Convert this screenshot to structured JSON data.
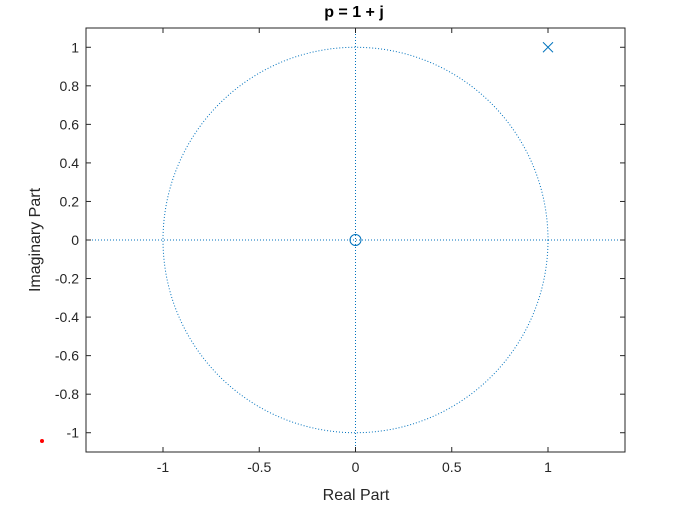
{
  "chart_data": {
    "type": "scatter",
    "title": "p = 1 + j",
    "xlabel": "Real Part",
    "ylabel": "Imaginary Part",
    "xlim": [
      -1.4,
      1.4
    ],
    "ylim": [
      -1.1,
      1.1
    ],
    "x_ticks": [
      -1,
      -0.5,
      0,
      0.5,
      1
    ],
    "x_tick_labels": [
      "-1",
      "-0.5",
      "0",
      "0.5",
      "1"
    ],
    "y_ticks": [
      1,
      0.8,
      0.6,
      0.4,
      0.2,
      0,
      -0.2,
      -0.4,
      -0.6,
      -0.8,
      -1
    ],
    "y_tick_labels": [
      "1",
      "0.8",
      "0.6",
      "0.4",
      "0.2",
      "0",
      "-0.2",
      "-0.4",
      "-0.6",
      "-0.8",
      "-1"
    ],
    "grid": false,
    "unit_circle": {
      "radius": 1,
      "style": "dotted"
    },
    "zeros": [
      {
        "re": 0,
        "im": 0
      }
    ],
    "poles": [
      {
        "re": 1,
        "im": 1
      }
    ],
    "colors": {
      "markers": "#0072BD",
      "axes": "#262626",
      "outlier_dot": "#ff0000"
    }
  }
}
